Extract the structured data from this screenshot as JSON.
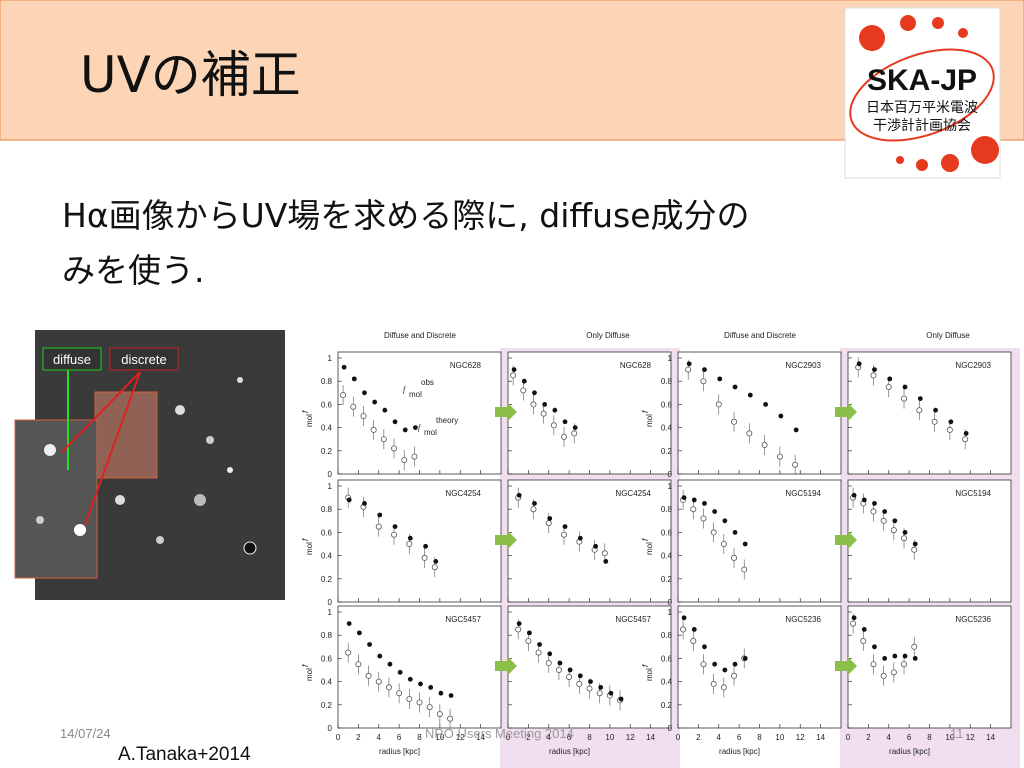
{
  "header": {
    "title": "UVの補正"
  },
  "logo": {
    "name": "SKA-JP",
    "lines": [
      "日本百万平米電波",
      "干渉計計画協会"
    ]
  },
  "body": {
    "lines": [
      "Hα画像からUV場を求める際に, diffuse成分の",
      "みを使う."
    ]
  },
  "image": {
    "labels": [
      "diffuse",
      "discrete"
    ]
  },
  "plots": {
    "column_titles": [
      "Diffuse and Discrete",
      "Only Diffuse",
      "Diffuse and Discrete",
      "Only Diffuse"
    ],
    "xlabel": "radius [kpc]",
    "ylabel": "f",
    "ylabel_sub": "mol",
    "legend": [
      "obs",
      "theory"
    ],
    "xlim": [
      0,
      16
    ],
    "ylim": [
      0,
      1
    ],
    "xticks": [
      0,
      2,
      4,
      6,
      8,
      10,
      12,
      14
    ],
    "yticks": [
      0,
      0.2,
      0.4,
      0.6,
      0.8,
      1
    ],
    "panels": [
      [
        {
          "name": "NGC628",
          "x": [
            0.5,
            1.5,
            2.5,
            3.5,
            4.5,
            5.5,
            6.5,
            7.5
          ],
          "obs": [
            0.92,
            0.82,
            0.7,
            0.62,
            0.55,
            0.45,
            0.38,
            0.4
          ],
          "theory": [
            0.68,
            0.58,
            0.5,
            0.38,
            0.3,
            0.22,
            0.12,
            0.15
          ]
        },
        {
          "name": "NGC4254",
          "x": [
            1,
            2.5,
            4,
            5.5,
            7,
            8.5,
            9.5
          ],
          "obs": [
            0.88,
            0.85,
            0.75,
            0.65,
            0.55,
            0.48,
            0.35
          ],
          "theory": [
            0.9,
            0.82,
            0.65,
            0.58,
            0.5,
            0.38,
            0.3
          ]
        },
        {
          "name": "NGC5457",
          "x": [
            1,
            2,
            3,
            4,
            5,
            6,
            7,
            8,
            9,
            10,
            11
          ],
          "obs": [
            0.9,
            0.82,
            0.72,
            0.62,
            0.55,
            0.48,
            0.42,
            0.38,
            0.35,
            0.3,
            0.28
          ],
          "theory": [
            0.65,
            0.55,
            0.45,
            0.4,
            0.35,
            0.3,
            0.25,
            0.22,
            0.18,
            0.12,
            0.08
          ]
        }
      ],
      [
        {
          "name": "NGC628",
          "x": [
            0.5,
            1.5,
            2.5,
            3.5,
            4.5,
            5.5,
            6.5
          ],
          "obs": [
            0.9,
            0.8,
            0.7,
            0.6,
            0.55,
            0.45,
            0.4
          ],
          "theory": [
            0.85,
            0.72,
            0.6,
            0.52,
            0.42,
            0.32,
            0.35
          ]
        },
        {
          "name": "NGC4254",
          "x": [
            1,
            2.5,
            4,
            5.5,
            7,
            8.5,
            9.5
          ],
          "obs": [
            0.92,
            0.85,
            0.72,
            0.65,
            0.55,
            0.48,
            0.35
          ],
          "theory": [
            0.9,
            0.8,
            0.68,
            0.58,
            0.52,
            0.45,
            0.42
          ]
        },
        {
          "name": "NGC5457",
          "x": [
            1,
            2,
            3,
            4,
            5,
            6,
            7,
            8,
            9,
            10,
            11
          ],
          "obs": [
            0.9,
            0.82,
            0.72,
            0.64,
            0.56,
            0.5,
            0.45,
            0.4,
            0.35,
            0.3,
            0.25
          ],
          "theory": [
            0.85,
            0.75,
            0.65,
            0.56,
            0.5,
            0.44,
            0.38,
            0.34,
            0.3,
            0.28,
            0.24
          ]
        }
      ],
      [
        {
          "name": "NGC2903",
          "x": [
            1,
            2.5,
            4,
            5.5,
            7,
            8.5,
            10,
            11.5
          ],
          "obs": [
            0.95,
            0.9,
            0.82,
            0.75,
            0.68,
            0.6,
            0.5,
            0.38
          ],
          "theory": [
            0.9,
            0.8,
            0.6,
            0.45,
            0.35,
            0.25,
            0.15,
            0.08
          ]
        },
        {
          "name": "NGC5194",
          "x": [
            0.5,
            1.5,
            2.5,
            3.5,
            4.5,
            5.5,
            6.5
          ],
          "obs": [
            0.9,
            0.88,
            0.85,
            0.78,
            0.7,
            0.6,
            0.5
          ],
          "theory": [
            0.88,
            0.8,
            0.72,
            0.6,
            0.5,
            0.38,
            0.28
          ]
        },
        {
          "name": "NGC5236",
          "x": [
            0.5,
            1.5,
            2.5,
            3.5,
            4.5,
            5.5,
            6.5
          ],
          "obs": [
            0.95,
            0.85,
            0.7,
            0.55,
            0.5,
            0.55,
            0.6
          ],
          "theory": [
            0.85,
            0.75,
            0.55,
            0.38,
            0.35,
            0.45,
            0.6
          ]
        }
      ],
      [
        {
          "name": "NGC2903",
          "x": [
            1,
            2.5,
            4,
            5.5,
            7,
            8.5,
            10,
            11.5
          ],
          "obs": [
            0.95,
            0.9,
            0.82,
            0.75,
            0.65,
            0.55,
            0.45,
            0.35
          ],
          "theory": [
            0.92,
            0.85,
            0.75,
            0.65,
            0.55,
            0.45,
            0.38,
            0.3
          ]
        },
        {
          "name": "NGC5194",
          "x": [
            0.5,
            1.5,
            2.5,
            3.5,
            4.5,
            5.5,
            6.5
          ],
          "obs": [
            0.92,
            0.88,
            0.85,
            0.78,
            0.7,
            0.6,
            0.5
          ],
          "theory": [
            0.9,
            0.85,
            0.78,
            0.7,
            0.62,
            0.55,
            0.45
          ]
        },
        {
          "name": "NGC5236",
          "x": [
            0.5,
            1.5,
            2.5,
            3.5,
            4.5,
            5.5,
            6.5
          ],
          "obs": [
            0.95,
            0.85,
            0.7,
            0.6,
            0.62,
            0.62,
            0.6
          ],
          "theory": [
            0.9,
            0.75,
            0.55,
            0.45,
            0.48,
            0.55,
            0.7
          ]
        }
      ]
    ]
  },
  "footer": {
    "date": "14/07/24",
    "event": "NRO Users Meeting 2014",
    "page": "11",
    "credit": "A.Tanaka+2014"
  }
}
